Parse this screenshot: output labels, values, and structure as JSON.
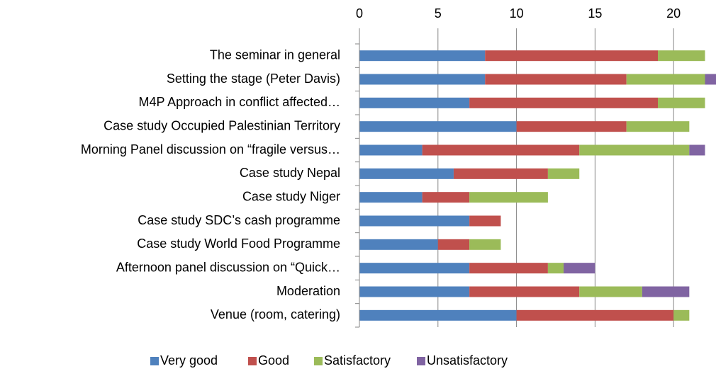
{
  "chart_data": {
    "type": "stacked-barh",
    "categories": [
      "The seminar in general",
      "Setting the stage (Peter Davis)",
      "M4P Approach in conflict affected…",
      "Case study Occupied Palestinian Territory",
      "Morning Panel discussion on “fragile versus…",
      "Case study Nepal",
      "Case study Niger",
      "Case study SDC’s cash programme",
      "Case study World Food Programme",
      "Afternoon panel discussion on “Quick…",
      "Moderation",
      "Venue (room, catering)"
    ],
    "series": [
      {
        "name": "Very good",
        "color": "#4f81bd",
        "values": [
          8,
          8,
          7,
          10,
          4,
          6,
          4,
          7,
          5,
          7,
          7,
          10
        ]
      },
      {
        "name": "Good",
        "color": "#c0504d",
        "values": [
          11,
          9,
          12,
          7,
          10,
          6,
          3,
          2,
          2,
          5,
          7,
          10
        ]
      },
      {
        "name": "Satisfactory",
        "color": "#9bbb59",
        "values": [
          3,
          5,
          3,
          4,
          7,
          2,
          5,
          0,
          2,
          1,
          4,
          1
        ]
      },
      {
        "name": "Unsatisfactory",
        "color": "#8064a2",
        "values": [
          0,
          1,
          0,
          0,
          1,
          0,
          0,
          0,
          0,
          2,
          3,
          0
        ]
      }
    ],
    "xlim": [
      0,
      22.7
    ],
    "xticks": [
      0,
      5,
      10,
      15,
      20
    ],
    "grid": true,
    "legend": "bottom"
  }
}
